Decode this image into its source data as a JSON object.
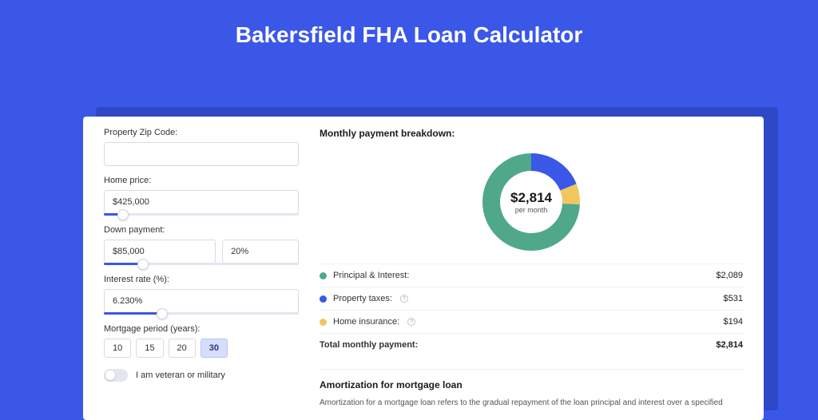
{
  "page": {
    "title": "Bakersfield FHA Loan Calculator",
    "background_color": "#3a57e8",
    "shadow_color": "#2e48c7",
    "panel_color": "#ffffff"
  },
  "form": {
    "zip": {
      "label": "Property Zip Code:",
      "value": ""
    },
    "home_price": {
      "label": "Home price:",
      "value": "$425,000",
      "slider_percent": 10
    },
    "down_payment": {
      "label": "Down payment:",
      "amount": "$85,000",
      "percent": "20%",
      "slider_percent": 20
    },
    "interest_rate": {
      "label": "Interest rate (%):",
      "value": "6.230%",
      "slider_percent": 30
    },
    "mortgage_period": {
      "label": "Mortgage period (years):",
      "options": [
        "10",
        "15",
        "20",
        "30"
      ],
      "selected": "30"
    },
    "veteran": {
      "label": "I am veteran or military",
      "checked": false
    }
  },
  "breakdown": {
    "heading": "Monthly payment breakdown:",
    "center_amount": "$2,814",
    "center_sub": "per month",
    "items": [
      {
        "key": "pi",
        "label": "Principal & Interest:",
        "value": "$2,089",
        "color": "#4fa88a",
        "info": false,
        "pct": 74.2
      },
      {
        "key": "tax",
        "label": "Property taxes:",
        "value": "$531",
        "color": "#3a57e8",
        "info": true,
        "pct": 18.9
      },
      {
        "key": "ins",
        "label": "Home insurance:",
        "value": "$194",
        "color": "#f0c75e",
        "info": true,
        "pct": 6.9
      }
    ],
    "total": {
      "label": "Total monthly payment:",
      "value": "$2,814"
    }
  },
  "amortization": {
    "heading": "Amortization for mortgage loan",
    "text": "Amortization for a mortgage loan refers to the gradual repayment of the loan principal and interest over a specified"
  },
  "donut": {
    "radius": 50,
    "stroke": 22,
    "circumference": 314.159
  }
}
